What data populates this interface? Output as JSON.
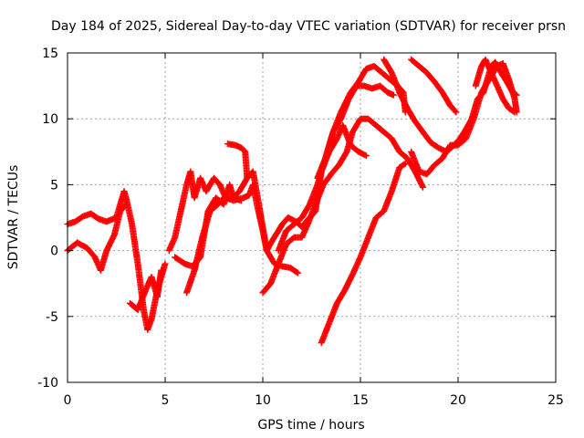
{
  "chart_data": {
    "type": "scatter",
    "title": "Day 184 of 2025, Sidereal Day-to-day VTEC variation (SDTVAR) for receiver prsn",
    "xlabel": "GPS time / hours",
    "ylabel": "SDTVAR / TECUs",
    "xlim": [
      0,
      25
    ],
    "ylim": [
      -10,
      15
    ],
    "xticks": [
      "0",
      "5",
      "10",
      "15",
      "20",
      "25"
    ],
    "yticks": [
      "-10",
      "-5",
      "0",
      "5",
      "10",
      "15"
    ],
    "grid": true,
    "marker": "+",
    "marker_color": "#ff0000",
    "series": [
      {
        "points": [
          [
            0.0,
            2.0
          ],
          [
            0.4,
            2.2
          ],
          [
            0.8,
            2.6
          ],
          [
            1.2,
            2.8
          ],
          [
            1.6,
            2.4
          ],
          [
            2.0,
            2.2
          ],
          [
            2.5,
            2.5
          ],
          [
            2.9,
            4.5
          ],
          [
            3.0,
            4.0
          ],
          [
            3.3,
            2.0
          ],
          [
            3.6,
            -1.0
          ],
          [
            3.9,
            -4.5
          ],
          [
            4.1,
            -6.0
          ],
          [
            4.3,
            -5.2
          ],
          [
            4.6,
            -3.0
          ],
          [
            4.8,
            -2.0
          ],
          [
            5.0,
            -1.0
          ]
        ]
      },
      {
        "points": [
          [
            0.0,
            0.0
          ],
          [
            0.5,
            0.6
          ],
          [
            1.0,
            0.2
          ],
          [
            1.4,
            -0.5
          ],
          [
            1.7,
            -1.5
          ],
          [
            2.0,
            0.0
          ],
          [
            2.4,
            1.2
          ],
          [
            2.7,
            3.0
          ],
          [
            3.0,
            3.5
          ]
        ]
      },
      {
        "points": [
          [
            3.2,
            -4.0
          ],
          [
            3.6,
            -4.5
          ],
          [
            4.0,
            -3.0
          ],
          [
            4.3,
            -2.0
          ],
          [
            4.6,
            -3.5
          ],
          [
            4.8,
            -1.5
          ]
        ]
      },
      {
        "points": [
          [
            5.2,
            0.0
          ],
          [
            5.5,
            1.0
          ],
          [
            5.8,
            3.0
          ],
          [
            6.1,
            5.0
          ],
          [
            6.3,
            6.0
          ],
          [
            6.5,
            4.0
          ],
          [
            6.8,
            5.5
          ],
          [
            7.1,
            4.5
          ],
          [
            7.5,
            5.5
          ],
          [
            7.8,
            5.0
          ],
          [
            8.1,
            4.0
          ],
          [
            8.5,
            3.8
          ],
          [
            9.0,
            4.0
          ],
          [
            9.3,
            4.2
          ],
          [
            9.5,
            5.0
          ],
          [
            9.7,
            3.5
          ],
          [
            10.0,
            1.5
          ],
          [
            10.2,
            0.0
          ],
          [
            10.5,
            0.8
          ],
          [
            10.8,
            1.5
          ],
          [
            11.0,
            2.0
          ],
          [
            11.3,
            2.5
          ],
          [
            11.7,
            2.2
          ],
          [
            12.0,
            1.8
          ],
          [
            12.4,
            2.5
          ],
          [
            12.7,
            3.0
          ],
          [
            13.0,
            6.0
          ],
          [
            13.4,
            7.5
          ],
          [
            13.8,
            8.5
          ],
          [
            14.1,
            9.5
          ],
          [
            14.5,
            8.0
          ],
          [
            14.9,
            7.5
          ],
          [
            15.3,
            7.2
          ]
        ]
      },
      {
        "points": [
          [
            5.5,
            -0.5
          ],
          [
            6.0,
            -1.0
          ],
          [
            6.4,
            -1.2
          ],
          [
            6.8,
            -0.5
          ],
          [
            7.2,
            3.0
          ],
          [
            7.6,
            4.0
          ],
          [
            8.0,
            3.5
          ],
          [
            8.3,
            5.0
          ],
          [
            8.5,
            4.0
          ],
          [
            8.8,
            4.5
          ],
          [
            9.2,
            5.5
          ],
          [
            9.5,
            6.0
          ],
          [
            9.8,
            3.5
          ],
          [
            10.2,
            0.0
          ],
          [
            10.6,
            -1.0
          ],
          [
            11.0,
            -1.2
          ],
          [
            11.4,
            -1.3
          ],
          [
            11.8,
            -1.7
          ]
        ]
      },
      {
        "points": [
          [
            6.1,
            -3.2
          ],
          [
            6.5,
            -1.5
          ],
          [
            6.9,
            1.0
          ],
          [
            7.3,
            3.0
          ],
          [
            7.7,
            3.5
          ],
          [
            8.0,
            4.0
          ],
          [
            8.4,
            4.0
          ],
          [
            8.9,
            3.8
          ]
        ]
      },
      {
        "points": [
          [
            8.2,
            8.1
          ],
          [
            8.6,
            8.0
          ],
          [
            8.9,
            7.8
          ],
          [
            9.1,
            7.5
          ],
          [
            9.2,
            5.5
          ]
        ]
      },
      {
        "points": [
          [
            10.0,
            -3.2
          ],
          [
            10.4,
            -2.5
          ],
          [
            10.8,
            -1.0
          ],
          [
            11.2,
            0.5
          ],
          [
            11.6,
            1.0
          ],
          [
            12.0,
            1.0
          ],
          [
            12.3,
            2.0
          ],
          [
            12.7,
            3.5
          ],
          [
            13.1,
            5.0
          ],
          [
            13.5,
            5.8
          ],
          [
            13.9,
            6.5
          ],
          [
            14.3,
            7.5
          ],
          [
            14.6,
            9.0
          ],
          [
            15.0,
            10.0
          ],
          [
            15.4,
            10.0
          ],
          [
            15.8,
            9.5
          ],
          [
            16.2,
            9.0
          ],
          [
            16.6,
            8.5
          ],
          [
            17.0,
            7.5
          ],
          [
            17.4,
            7.0
          ],
          [
            17.8,
            6.0
          ],
          [
            18.2,
            4.8
          ]
        ]
      },
      {
        "points": [
          [
            10.8,
            0.0
          ],
          [
            11.2,
            1.5
          ],
          [
            11.6,
            2.0
          ],
          [
            12.0,
            2.5
          ],
          [
            12.4,
            3.5
          ],
          [
            12.8,
            5.0
          ],
          [
            13.2,
            7.0
          ],
          [
            13.6,
            9.0
          ],
          [
            14.0,
            10.5
          ],
          [
            14.5,
            12.0
          ],
          [
            14.9,
            12.8
          ],
          [
            15.3,
            13.8
          ],
          [
            15.7,
            14.0
          ],
          [
            16.1,
            13.5
          ],
          [
            16.5,
            13.0
          ],
          [
            16.9,
            12.5
          ],
          [
            17.2,
            12.0
          ],
          [
            17.3,
            10.5
          ]
        ]
      },
      {
        "points": [
          [
            12.8,
            5.5
          ],
          [
            13.2,
            7.0
          ],
          [
            13.6,
            9.0
          ],
          [
            14.0,
            10.0
          ],
          [
            14.4,
            11.5
          ],
          [
            14.8,
            12.5
          ],
          [
            15.2,
            12.5
          ],
          [
            15.6,
            12.3
          ],
          [
            16.0,
            12.5
          ],
          [
            16.4,
            12.0
          ],
          [
            16.7,
            11.8
          ]
        ]
      },
      {
        "points": [
          [
            13.0,
            -7.0
          ],
          [
            13.4,
            -5.5
          ],
          [
            13.8,
            -4.0
          ],
          [
            14.2,
            -3.0
          ],
          [
            14.6,
            -1.8
          ],
          [
            15.0,
            -0.5
          ],
          [
            15.4,
            1.0
          ],
          [
            15.8,
            2.5
          ],
          [
            16.2,
            3.0
          ],
          [
            16.6,
            4.5
          ],
          [
            17.0,
            6.3
          ],
          [
            17.3,
            6.6
          ]
        ]
      },
      {
        "points": [
          [
            16.2,
            14.5
          ],
          [
            16.6,
            13.5
          ],
          [
            17.0,
            12.0
          ],
          [
            17.4,
            10.8
          ],
          [
            17.8,
            9.8
          ],
          [
            18.2,
            9.0
          ],
          [
            18.6,
            8.2
          ],
          [
            19.0,
            7.8
          ],
          [
            19.4,
            7.5
          ],
          [
            19.8,
            8.0
          ],
          [
            20.1,
            8.5
          ],
          [
            20.4,
            9.2
          ],
          [
            20.7,
            10.0
          ],
          [
            21.0,
            11.5
          ],
          [
            21.3,
            12.0
          ],
          [
            21.5,
            13.0
          ],
          [
            21.7,
            14.0
          ],
          [
            21.9,
            14.3
          ],
          [
            22.2,
            13.5
          ],
          [
            22.5,
            12.8
          ],
          [
            22.8,
            12.0
          ],
          [
            23.0,
            11.8
          ]
        ]
      },
      {
        "points": [
          [
            17.6,
            14.5
          ],
          [
            18.0,
            14.0
          ],
          [
            18.4,
            13.5
          ],
          [
            18.8,
            12.8
          ],
          [
            19.2,
            12.0
          ],
          [
            19.6,
            11.0
          ],
          [
            19.9,
            10.5
          ]
        ]
      },
      {
        "points": [
          [
            17.6,
            7.5
          ],
          [
            18.0,
            6.0
          ],
          [
            18.4,
            5.8
          ],
          [
            18.8,
            6.5
          ],
          [
            19.2,
            7.0
          ],
          [
            19.6,
            8.0
          ],
          [
            20.0,
            8.0
          ],
          [
            20.4,
            8.5
          ],
          [
            20.8,
            10.0
          ],
          [
            21.2,
            12.0
          ],
          [
            21.6,
            13.0
          ],
          [
            22.0,
            14.0
          ],
          [
            22.3,
            14.2
          ],
          [
            22.6,
            13.0
          ],
          [
            22.9,
            11.5
          ],
          [
            23.0,
            10.5
          ]
        ]
      },
      {
        "points": [
          [
            20.9,
            12.5
          ],
          [
            21.2,
            14.0
          ],
          [
            21.4,
            14.5
          ],
          [
            21.7,
            13.5
          ],
          [
            22.0,
            12.5
          ],
          [
            22.3,
            11.5
          ],
          [
            22.6,
            10.8
          ],
          [
            22.9,
            10.5
          ]
        ]
      }
    ]
  }
}
